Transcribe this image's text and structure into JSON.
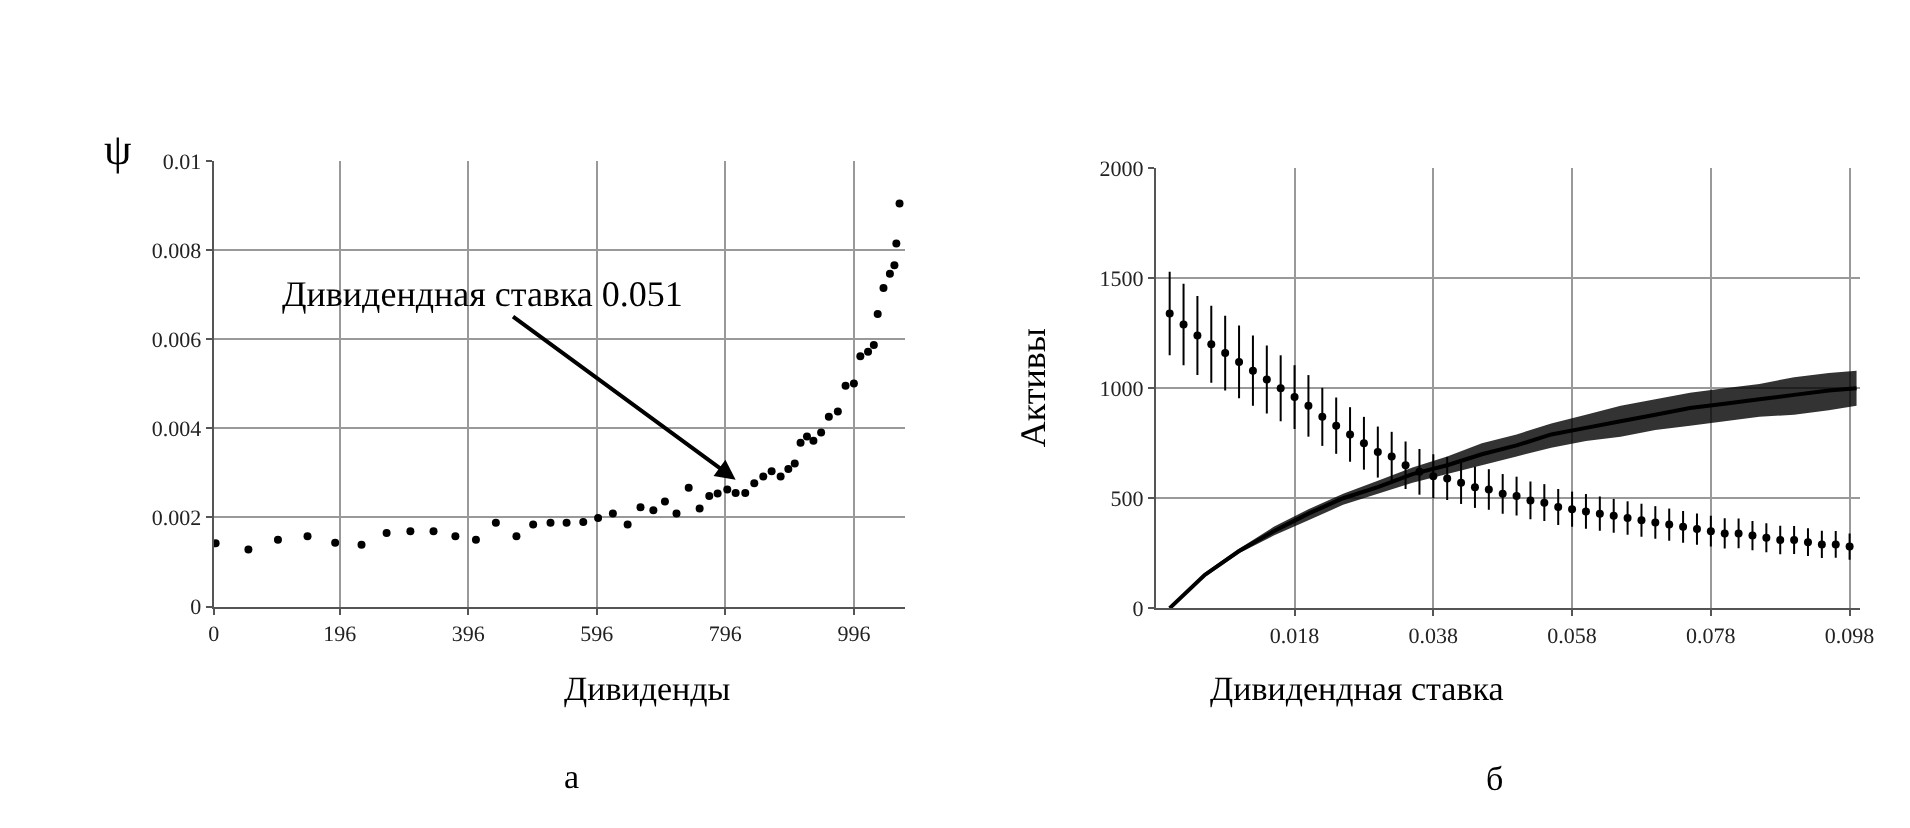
{
  "chart_data": [
    {
      "type": "scatter",
      "ylabel": "ψ",
      "xlabel": "Дивиденды",
      "annotations": [
        {
          "text": "Дивидендная ставка 0.051",
          "x": 812,
          "y": 0.00285
        },
        "а"
      ],
      "x": [
        3,
        54,
        100,
        146,
        189,
        230,
        269,
        306,
        342,
        376,
        408,
        439,
        471,
        497,
        524,
        549,
        575,
        598,
        621,
        644,
        664,
        684,
        702,
        720,
        739,
        756,
        771,
        784,
        799,
        812,
        827,
        841,
        855,
        868,
        882,
        894,
        904,
        913,
        923,
        933,
        945,
        957,
        971,
        983,
        996,
        1006,
        1018,
        1027,
        1033,
        1042,
        1052,
        1059,
        1062,
        1067
      ],
      "series": [
        {
          "color": "#000000",
          "values": [
            0.00142,
            0.00128,
            0.0015,
            0.00158,
            0.00143,
            0.00139,
            0.00165,
            0.00169,
            0.00169,
            0.00158,
            0.0015,
            0.00188,
            0.00158,
            0.00184,
            0.00188,
            0.00188,
            0.0019,
            0.00199,
            0.00209,
            0.00184,
            0.00223,
            0.00216,
            0.00236,
            0.00209,
            0.00267,
            0.0022,
            0.00248,
            0.00254,
            0.00263,
            0.00255,
            0.00255,
            0.00277,
            0.00292,
            0.00304,
            0.00292,
            0.00309,
            0.00321,
            0.00368,
            0.00382,
            0.00372,
            0.00391,
            0.00426,
            0.00438,
            0.00496,
            0.00501,
            0.00562,
            0.00572,
            0.00587,
            0.00657,
            0.00715,
            0.00747,
            0.00766,
            0.00815,
            0.00905
          ]
        }
      ],
      "xlim": [
        0,
        1075
      ],
      "xticks": [
        0,
        196,
        396,
        596,
        796,
        996
      ],
      "ylim": [
        0,
        0.01
      ],
      "yticks": [
        0,
        0.002,
        0.004,
        0.006,
        0.008,
        0.01
      ],
      "grid": true,
      "marker": "circle"
    },
    {
      "type": "scatter",
      "ylabel": "Активы",
      "xlabel": "Дивидендная ставка",
      "annotations": [
        "б"
      ],
      "series": [
        {
          "type": "scatter",
          "color": "#000000",
          "x": [
            0,
            0.002,
            0.004,
            0.006,
            0.008,
            0.01,
            0.012,
            0.014,
            0.016,
            0.018,
            0.02,
            0.022,
            0.024,
            0.026,
            0.028,
            0.03,
            0.032,
            0.034,
            0.036,
            0.038,
            0.04,
            0.042,
            0.044,
            0.046,
            0.048,
            0.05,
            0.052,
            0.054,
            0.056,
            0.058,
            0.06,
            0.062,
            0.064,
            0.066,
            0.068,
            0.07,
            0.072,
            0.074,
            0.076,
            0.078,
            0.08,
            0.082,
            0.084,
            0.086,
            0.088,
            0.09,
            0.092,
            0.094,
            0.096,
            0.098
          ],
          "values": [
            1340,
            1290,
            1240,
            1200,
            1160,
            1120,
            1080,
            1040,
            1000,
            960,
            920,
            870,
            830,
            790,
            750,
            710,
            690,
            650,
            620,
            600,
            590,
            570,
            550,
            540,
            520,
            510,
            490,
            480,
            460,
            450,
            440,
            430,
            420,
            410,
            400,
            390,
            380,
            370,
            360,
            350,
            340,
            340,
            330,
            320,
            310,
            310,
            300,
            290,
            290,
            280
          ],
          "errors": [
            190,
            185,
            180,
            175,
            170,
            165,
            160,
            155,
            150,
            145,
            140,
            132,
            128,
            124,
            120,
            116,
            112,
            108,
            104,
            100,
            98,
            96,
            94,
            92,
            90,
            88,
            86,
            84,
            82,
            80,
            79,
            78,
            77,
            76,
            75,
            74,
            73,
            72,
            71,
            70,
            69,
            68,
            67,
            66,
            65,
            64,
            63,
            62,
            61,
            60
          ]
        },
        {
          "type": "line",
          "color": "#000000",
          "marker": "none",
          "x": [
            0,
            0.005,
            0.01,
            0.015,
            0.02,
            0.025,
            0.03,
            0.035,
            0.04,
            0.045,
            0.05,
            0.055,
            0.06,
            0.065,
            0.07,
            0.075,
            0.08,
            0.085,
            0.09,
            0.095,
            0.099
          ],
          "values": [
            0,
            150,
            260,
            350,
            430,
            500,
            550,
            610,
            650,
            700,
            740,
            790,
            820,
            850,
            880,
            910,
            930,
            950,
            970,
            990,
            1000
          ],
          "lower": [
            0,
            140,
            250,
            330,
            400,
            470,
            520,
            570,
            610,
            650,
            690,
            730,
            760,
            780,
            810,
            830,
            850,
            870,
            880,
            900,
            920
          ],
          "upper": [
            0,
            160,
            270,
            370,
            450,
            520,
            580,
            640,
            690,
            750,
            790,
            840,
            880,
            920,
            950,
            980,
            1000,
            1020,
            1050,
            1070,
            1080
          ]
        }
      ],
      "xlim": [
        -0.002,
        0.0995
      ],
      "xticks": [
        0.018,
        0.038,
        0.058,
        0.078,
        0.098
      ],
      "ylim": [
        0,
        2000
      ],
      "yticks": [
        0,
        500,
        1000,
        1500,
        2000
      ],
      "grid": true,
      "marker": "circle"
    }
  ]
}
